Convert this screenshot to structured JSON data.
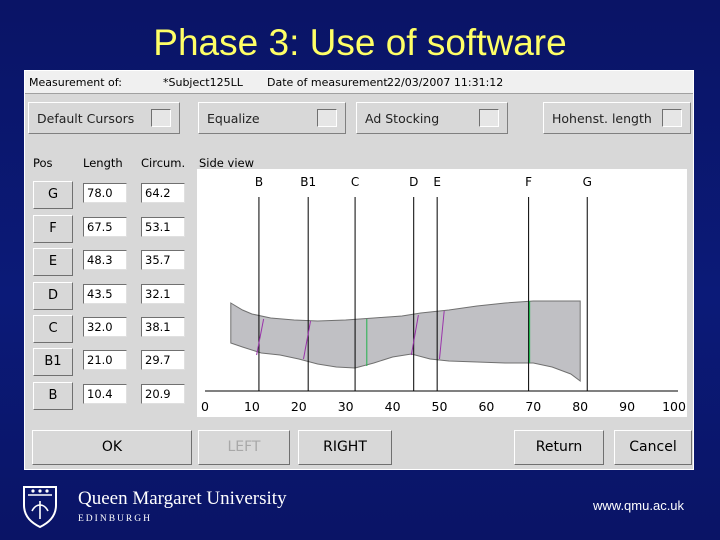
{
  "slide": {
    "title": "Phase 3: Use of software"
  },
  "window": {
    "header": {
      "measurement_label": "Measurement of:",
      "subject": "*Subject125LL",
      "date_label": "Date of measurement",
      "date_value": "22/03/2007 11:31:12"
    },
    "top_buttons": [
      {
        "label": "Default Cursors"
      },
      {
        "label": "Equalize"
      },
      {
        "label": "Ad Stocking"
      },
      {
        "label": "Hohenst. length"
      }
    ],
    "columns": {
      "pos": "Pos",
      "length": "Length",
      "circum": "Circum.",
      "side_view": "Side view"
    },
    "rows": [
      {
        "pos": "G",
        "length": "78.0",
        "circum": "64.2"
      },
      {
        "pos": "F",
        "length": "67.5",
        "circum": "53.1"
      },
      {
        "pos": "E",
        "length": "48.3",
        "circum": "35.7"
      },
      {
        "pos": "D",
        "length": "43.5",
        "circum": "32.1"
      },
      {
        "pos": "C",
        "length": "32.0",
        "circum": "38.1"
      },
      {
        "pos": "B1",
        "length": "21.0",
        "circum": "29.7"
      },
      {
        "pos": "B",
        "length": "10.4",
        "circum": "20.9"
      }
    ],
    "bottom_buttons": {
      "ok": "OK",
      "left": "LEFT",
      "right": "RIGHT",
      "return": "Return",
      "cancel": "Cancel"
    }
  },
  "chart_data": {
    "type": "area",
    "title": "Side view",
    "xlim": [
      0,
      100
    ],
    "x_ticks": [
      "0",
      "10",
      "20",
      "30",
      "40",
      "50",
      "60",
      "70",
      "80",
      "90",
      "100"
    ],
    "markers": [
      {
        "name": "B",
        "x": 11.5
      },
      {
        "name": "B1",
        "x": 22
      },
      {
        "name": "C",
        "x": 32
      },
      {
        "name": "D",
        "x": 44.5
      },
      {
        "name": "E",
        "x": 49.5
      },
      {
        "name": "F",
        "x": 69
      },
      {
        "name": "G",
        "x": 81.5
      }
    ],
    "colors": {
      "fill": "#c0c0c4",
      "outline": "#707070",
      "marker": "#000000",
      "highlight": "#22b14c",
      "cut": "#9933aa"
    }
  },
  "footer": {
    "university": "Queen Margaret University",
    "city": "EDINBURGH",
    "url": "www.qmu.ac.uk"
  }
}
